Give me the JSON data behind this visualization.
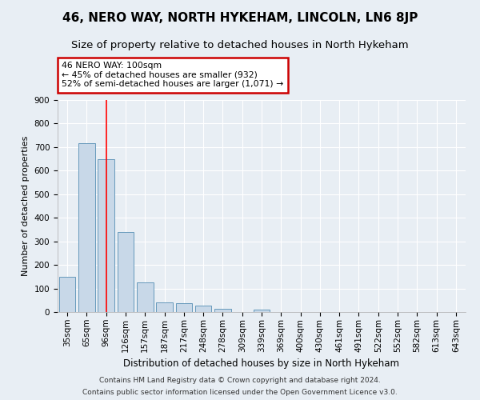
{
  "title": "46, NERO WAY, NORTH HYKEHAM, LINCOLN, LN6 8JP",
  "subtitle": "Size of property relative to detached houses in North Hykeham",
  "xlabel": "Distribution of detached houses by size in North Hykeham",
  "ylabel": "Number of detached properties",
  "categories": [
    "35sqm",
    "65sqm",
    "96sqm",
    "126sqm",
    "157sqm",
    "187sqm",
    "217sqm",
    "248sqm",
    "278sqm",
    "309sqm",
    "339sqm",
    "369sqm",
    "400sqm",
    "430sqm",
    "461sqm",
    "491sqm",
    "522sqm",
    "552sqm",
    "582sqm",
    "613sqm",
    "643sqm"
  ],
  "values": [
    150,
    715,
    650,
    340,
    125,
    40,
    38,
    27,
    12,
    0,
    10,
    0,
    0,
    0,
    0,
    0,
    0,
    0,
    0,
    0,
    0
  ],
  "bar_color": "#c8d8e8",
  "bar_edge_color": "#6699bb",
  "red_line_x": 2.0,
  "annotation_text": "46 NERO WAY: 100sqm\n← 45% of detached houses are smaller (932)\n52% of semi-detached houses are larger (1,071) →",
  "annotation_box_color": "#ffffff",
  "annotation_box_edge_color": "#cc0000",
  "ylim": [
    0,
    900
  ],
  "yticks": [
    0,
    100,
    200,
    300,
    400,
    500,
    600,
    700,
    800,
    900
  ],
  "footer_line1": "Contains HM Land Registry data © Crown copyright and database right 2024.",
  "footer_line2": "Contains public sector information licensed under the Open Government Licence v3.0.",
  "bg_color": "#e8eef4",
  "plot_bg_color": "#e8eef4",
  "grid_color": "#ffffff",
  "title_fontsize": 11,
  "subtitle_fontsize": 9.5,
  "xlabel_fontsize": 8.5,
  "ylabel_fontsize": 8,
  "tick_fontsize": 7.5,
  "footer_fontsize": 6.5
}
